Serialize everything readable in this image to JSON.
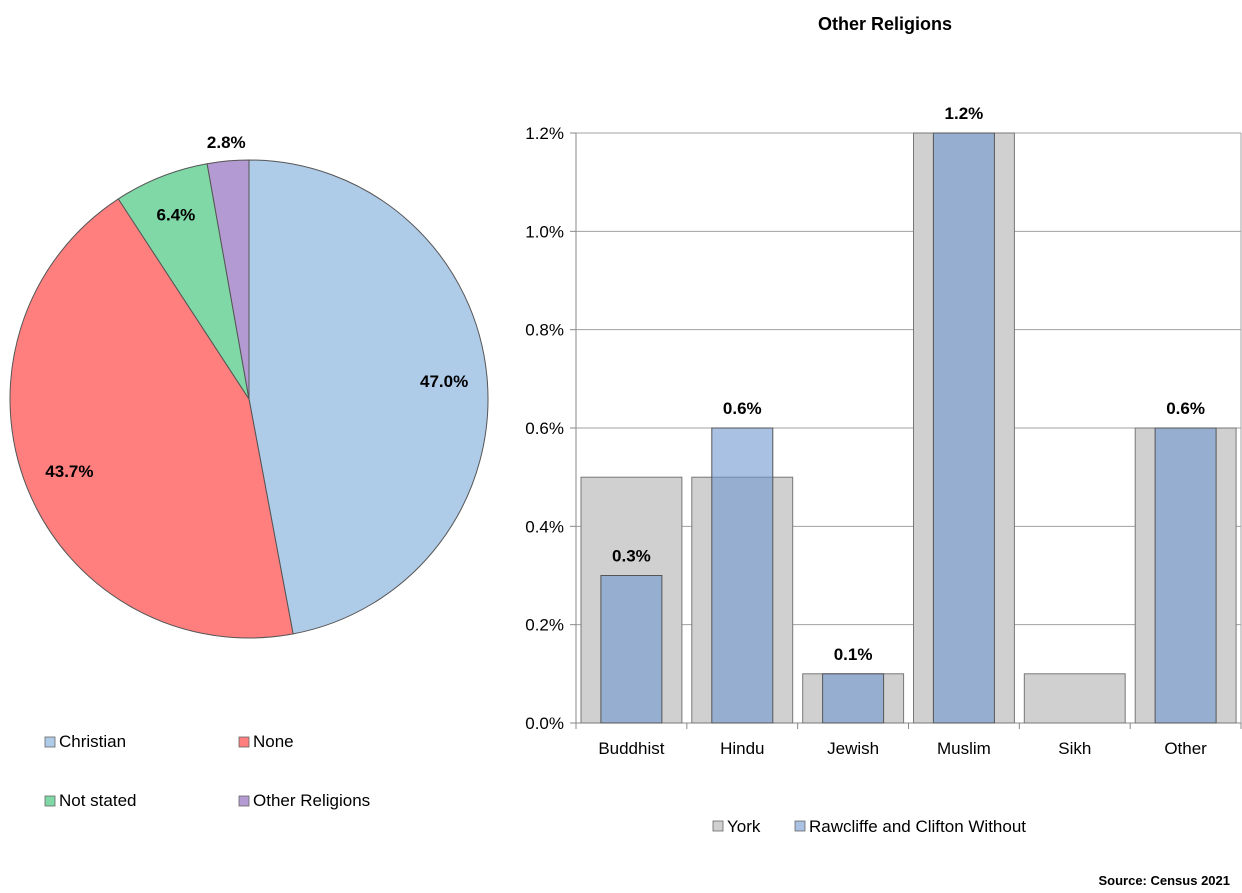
{
  "chart_data": [
    {
      "type": "pie",
      "slices": [
        {
          "name": "Christian",
          "value": 47.0,
          "label": "47.0%",
          "color": "#aecbe8"
        },
        {
          "name": "None",
          "value": 43.7,
          "label": "43.7%",
          "color": "#ff7f7f"
        },
        {
          "name": "Not stated",
          "value": 6.4,
          "label": "6.4%",
          "color": "#7fd8a6"
        },
        {
          "name": "Other Religions",
          "value": 2.8,
          "label": "2.8%",
          "color": "#b49ad2"
        }
      ],
      "legend": "bottom"
    },
    {
      "type": "bar",
      "title": "Other Religions",
      "categories": [
        "Buddhist",
        "Hindu",
        "Jewish",
        "Muslim",
        "Sikh",
        "Other"
      ],
      "series": [
        {
          "name": "York",
          "values": [
            0.5,
            0.5,
            0.1,
            1.2,
            0.1,
            0.6
          ],
          "color": "#d0d0d0"
        },
        {
          "name": "Rawcliffe and Clifton Without",
          "values": [
            0.3,
            0.6,
            0.1,
            1.2,
            0.0,
            0.6
          ],
          "color": "#8fa9c8",
          "labels": [
            "0.3%",
            "0.6%",
            "0.1%",
            "1.2%",
            "",
            "0.6%"
          ]
        }
      ],
      "ylim": [
        0,
        1.2
      ],
      "yticks": [
        "0.0%",
        "0.2%",
        "0.4%",
        "0.6%",
        "0.8%",
        "1.0%",
        "1.2%"
      ],
      "grid": true,
      "legend": "bottom"
    }
  ],
  "source": "Source: Census 2021"
}
